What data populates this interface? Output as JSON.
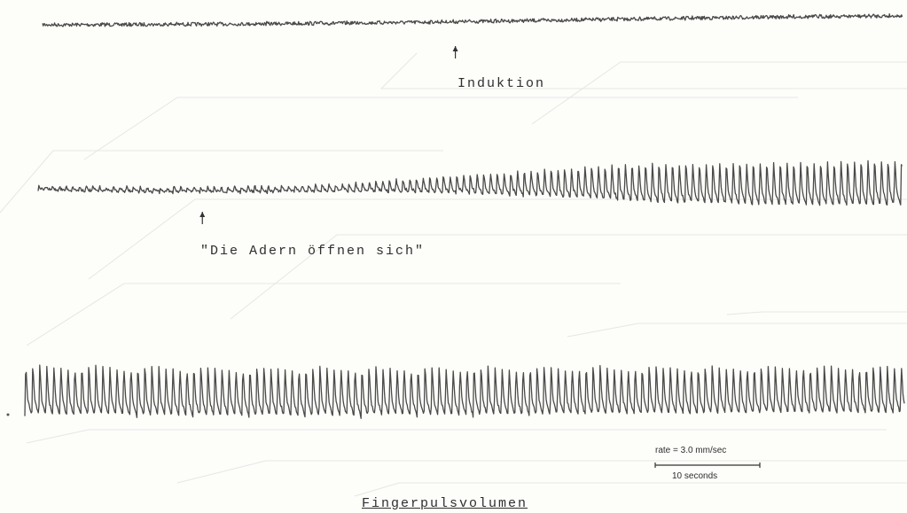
{
  "annotations": {
    "induction": "Induktion",
    "veins_open": "\"Die Adern öffnen sich\"",
    "title": "Fingerpulsvolumen"
  },
  "scale": {
    "rate_text": "rate = 3.0 mm/sec",
    "duration_text": "10 seconds"
  },
  "colors": {
    "background": "#fdfdfa",
    "trace": "#4a4a4a",
    "ghost_lines": "#e6e6e6"
  },
  "chart_data": {
    "type": "line",
    "title": "Fingerpulsvolumen",
    "xlabel": "",
    "ylabel": "",
    "grid": false,
    "series": [
      {
        "trace": 1,
        "description_of_shape": "flat noisy baseline",
        "amplitude_profile": [
          [
            0,
            0.04
          ],
          [
            1,
            0.05
          ]
        ],
        "event_marker_fraction": 0.48
      },
      {
        "trace": 2,
        "description_of_shape": "pulse wave growing after marker",
        "amplitude_profile": [
          [
            0,
            0.08
          ],
          [
            0.35,
            0.15
          ],
          [
            0.55,
            0.5
          ],
          [
            0.7,
            0.85
          ],
          [
            1,
            1.0
          ]
        ],
        "event_marker_fraction": 0.19
      },
      {
        "trace": 3,
        "description_of_shape": "full pulse wave",
        "amplitude_profile": [
          [
            0,
            1.0
          ],
          [
            1,
            0.95
          ]
        ]
      }
    ]
  }
}
